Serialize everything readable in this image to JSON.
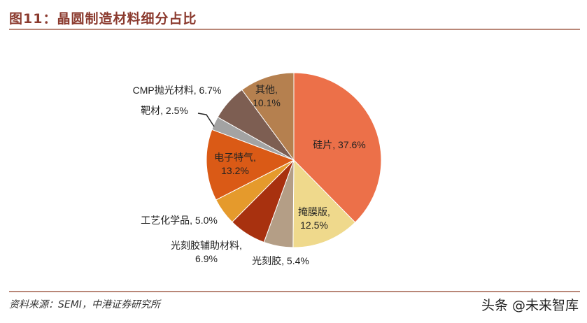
{
  "title": "图11：晶圆制造材料细分占比",
  "source": "资料来源：SEMI，中港证券研究所",
  "watermark": "头条 @未来智库",
  "chart_data": {
    "type": "pie",
    "title": "图11：晶圆制造材料细分占比",
    "start": "top",
    "direction": "clockwise",
    "slices": [
      {
        "name": "硅片",
        "value": 37.6,
        "label": "硅片, 37.6%",
        "color": "#EC7049"
      },
      {
        "name": "掩膜版",
        "value": 12.5,
        "label": "掩膜版,|12.5%",
        "color": "#EFD98C"
      },
      {
        "name": "光刻胶",
        "value": 5.4,
        "label": "光刻胶, 5.4%",
        "color": "#B49E86"
      },
      {
        "name": "光刻胶辅助材料",
        "value": 6.9,
        "label": "光刻胶辅助材料,|6.9%",
        "color": "#A8310F"
      },
      {
        "name": "工艺化学品",
        "value": 5.0,
        "label": "工艺化学品, 5.0%",
        "color": "#E59A2C"
      },
      {
        "name": "电子特气",
        "value": 13.2,
        "label": "电子特气,|13.2%",
        "color": "#DA5A16"
      },
      {
        "name": "靶材",
        "value": 2.5,
        "label": "靶材, 2.5%",
        "color": "#A3A3A3"
      },
      {
        "name": "CMP抛光材料",
        "value": 6.7,
        "label": "CMP抛光材料, 6.7%",
        "color": "#7D5E52"
      },
      {
        "name": "其他",
        "value": 10.1,
        "label": "其他,|10.1%",
        "color": "#B5804F"
      }
    ]
  }
}
